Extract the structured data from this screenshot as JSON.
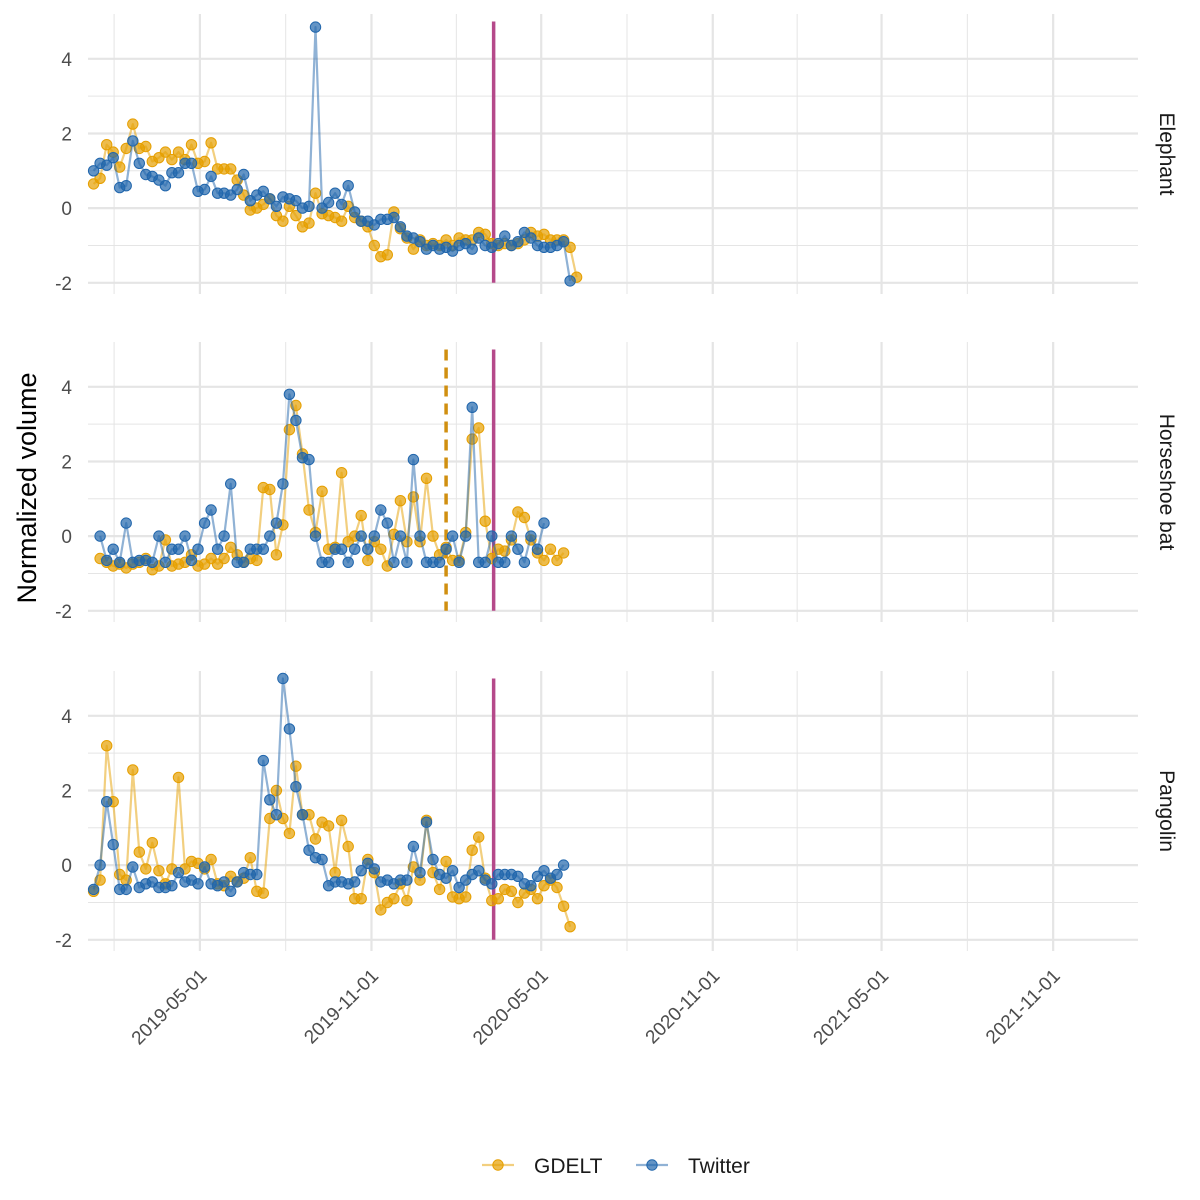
{
  "chart_data": {
    "type": "line",
    "ylabel": "Normalized volume",
    "xlabel": "",
    "colors": {
      "GDELT": "#E69F00",
      "Twitter": "#2166AC",
      "event_line": "#B5498A",
      "first_case_line": "#D08F10",
      "grid": "#E5E5E5"
    },
    "x_ticks": [
      "2019-05-01",
      "2019-11-01",
      "2020-05-01",
      "2020-11-01",
      "2021-05-01",
      "2021-11-01"
    ],
    "xlim": [
      "2019-01-01",
      "2022-01-31"
    ],
    "y_ticks": [
      -2,
      0,
      2,
      4
    ],
    "ylim": [
      -2.3,
      5.2
    ],
    "legend": {
      "position": "bottom",
      "entries": [
        "GDELT",
        "Twitter"
      ]
    },
    "panels": [
      {
        "label": "Elephant",
        "x_start": "2019-01-07",
        "step_days": 7,
        "vlines": [
          {
            "date": "2020-03-11",
            "style": "solid",
            "color_key": "event_line"
          }
        ],
        "series": [
          {
            "name": "GDELT",
            "values": [
              0.65,
              0.8,
              1.7,
              1.5,
              1.1,
              1.6,
              2.25,
              1.6,
              1.65,
              1.25,
              1.35,
              1.5,
              1.3,
              1.5,
              1.3,
              1.7,
              1.2,
              1.25,
              1.75,
              1.05,
              1.05,
              1.05,
              0.75,
              0.35,
              -0.05,
              0,
              0.1,
              0.25,
              -0.2,
              -0.35,
              0.05,
              -0.2,
              -0.5,
              -0.4,
              0.4,
              -0.15,
              -0.2,
              -0.25,
              -0.35,
              0.05,
              -0.25,
              -0.35,
              -0.5,
              -1.0,
              -1.3,
              -1.25,
              -0.1,
              -0.55,
              -0.8,
              -1.1,
              -0.85,
              -1.0,
              -0.95,
              -1.0,
              -0.85,
              -1.0,
              -0.8,
              -0.85,
              -0.85,
              -0.65,
              -0.7,
              -0.95,
              -1.0,
              -0.95,
              -1.0,
              -0.95,
              -0.85,
              -0.65,
              -0.75,
              -0.7,
              -0.85,
              -0.85,
              -0.85,
              -1.05,
              -1.85
            ]
          },
          {
            "name": "Twitter",
            "values": [
              1.0,
              1.2,
              1.15,
              1.35,
              0.55,
              0.6,
              1.8,
              1.2,
              0.9,
              0.85,
              0.75,
              0.6,
              0.95,
              0.95,
              1.2,
              1.2,
              0.45,
              0.5,
              0.85,
              0.4,
              0.4,
              0.35,
              0.5,
              0.9,
              0.2,
              0.35,
              0.45,
              0.25,
              0.05,
              0.3,
              0.25,
              0.2,
              0.0,
              0.05,
              4.85,
              0.0,
              0.15,
              0.4,
              0.1,
              0.6,
              -0.1,
              -0.35,
              -0.35,
              -0.45,
              -0.3,
              -0.3,
              -0.25,
              -0.5,
              -0.75,
              -0.8,
              -0.9,
              -1.1,
              -1.0,
              -1.1,
              -1.05,
              -1.15,
              -1.0,
              -0.95,
              -1.1,
              -0.8,
              -1.0,
              -1.05,
              -0.95,
              -0.75,
              -1.0,
              -0.9,
              -0.65,
              -0.8,
              -1.0,
              -1.05,
              -1.05,
              -1.0,
              -0.9,
              -1.95
            ]
          }
        ]
      },
      {
        "label": "Horseshoe bat",
        "x_start": "2019-01-07",
        "step_days": 7,
        "vlines": [
          {
            "date": "2020-01-20",
            "style": "dashed",
            "color_key": "first_case_line"
          },
          {
            "date": "2020-03-11",
            "style": "solid",
            "color_key": "event_line"
          }
        ],
        "series": [
          {
            "name": "GDELT",
            "values": [
              null,
              -0.6,
              -0.7,
              -0.8,
              -0.75,
              -0.85,
              -0.75,
              -0.7,
              -0.6,
              -0.9,
              -0.8,
              -0.1,
              -0.8,
              -0.75,
              -0.7,
              -0.5,
              -0.8,
              -0.75,
              -0.6,
              -0.75,
              -0.6,
              -0.3,
              -0.5,
              -0.7,
              -0.6,
              -0.65,
              1.3,
              1.25,
              -0.5,
              0.3,
              2.85,
              3.5,
              2.2,
              0.7,
              0.1,
              1.2,
              -0.35,
              -0.3,
              1.7,
              -0.15,
              0.0,
              0.55,
              -0.65,
              -0.15,
              -0.35,
              -0.8,
              0.05,
              0.95,
              -0.15,
              1.05,
              -0.15,
              1.55,
              0.0,
              -0.5,
              -0.3,
              -0.65,
              -0.65,
              0.1,
              2.6,
              2.9,
              0.4,
              -0.6,
              -0.35,
              -0.4,
              -0.1,
              0.65,
              0.5,
              -0.1,
              -0.45,
              -0.65,
              -0.35,
              -0.65,
              -0.45
            ]
          },
          {
            "name": "Twitter",
            "values": [
              null,
              0.0,
              -0.65,
              -0.35,
              -0.7,
              0.35,
              -0.7,
              -0.65,
              -0.65,
              -0.7,
              0.0,
              -0.7,
              -0.35,
              -0.35,
              0.0,
              -0.65,
              -0.35,
              0.35,
              0.7,
              -0.35,
              0.0,
              1.4,
              -0.7,
              -0.7,
              -0.35,
              -0.35,
              -0.35,
              0.0,
              0.35,
              1.4,
              3.8,
              3.1,
              2.1,
              2.05,
              0.0,
              -0.7,
              -0.7,
              -0.35,
              -0.35,
              -0.7,
              -0.35,
              0.0,
              -0.35,
              0.0,
              0.7,
              0.35,
              -0.7,
              0.0,
              -0.7,
              2.05,
              0.0,
              -0.7,
              -0.7,
              -0.7,
              -0.35,
              0.0,
              -0.7,
              0.0,
              3.45,
              -0.7,
              -0.7,
              0.0,
              -0.7,
              -0.7,
              0.0,
              -0.35,
              -0.7,
              0.0,
              -0.35,
              0.35
            ]
          }
        ]
      },
      {
        "label": "Pangolin",
        "x_start": "2019-01-07",
        "step_days": 7,
        "vlines": [
          {
            "date": "2020-03-11",
            "style": "solid",
            "color_key": "event_line"
          }
        ],
        "series": [
          {
            "name": "GDELT",
            "values": [
              -0.7,
              -0.4,
              3.2,
              1.7,
              -0.25,
              -0.4,
              2.55,
              0.35,
              -0.1,
              0.6,
              -0.15,
              -0.5,
              -0.1,
              2.35,
              -0.1,
              0.1,
              0.05,
              -0.1,
              0.15,
              -0.5,
              -0.55,
              -0.3,
              -0.45,
              -0.35,
              0.2,
              -0.7,
              -0.75,
              1.25,
              2.0,
              1.25,
              0.85,
              2.65,
              1.35,
              1.35,
              0.7,
              1.15,
              1.05,
              -0.2,
              1.2,
              0.5,
              -0.9,
              -0.9,
              0.15,
              -0.2,
              -1.2,
              -1.0,
              -0.9,
              -0.5,
              -0.95,
              -0.05,
              -0.4,
              1.2,
              -0.2,
              -0.65,
              0.1,
              -0.85,
              -0.9,
              -0.85,
              0.4,
              0.75,
              -0.35,
              -0.95,
              -0.9,
              -0.65,
              -0.7,
              -1.0,
              -0.75,
              -0.65,
              -0.9,
              -0.55,
              -0.4,
              -0.6,
              -1.1,
              -1.65
            ]
          },
          {
            "name": "Twitter",
            "values": [
              -0.65,
              0.0,
              1.7,
              0.55,
              -0.65,
              -0.65,
              -0.05,
              -0.6,
              -0.5,
              -0.45,
              -0.6,
              -0.6,
              -0.55,
              -0.2,
              -0.45,
              -0.4,
              -0.5,
              -0.05,
              -0.5,
              -0.55,
              -0.45,
              -0.7,
              -0.45,
              -0.2,
              -0.25,
              -0.25,
              2.8,
              1.75,
              1.35,
              5.0,
              3.65,
              2.1,
              1.35,
              0.4,
              0.2,
              0.15,
              -0.55,
              -0.45,
              -0.45,
              -0.5,
              -0.45,
              -0.15,
              0.05,
              -0.1,
              -0.45,
              -0.4,
              -0.5,
              -0.4,
              -0.4,
              0.5,
              -0.2,
              1.15,
              0.15,
              -0.25,
              -0.35,
              -0.15,
              -0.6,
              -0.4,
              -0.25,
              -0.15,
              -0.4,
              -0.5,
              -0.25,
              -0.25,
              -0.25,
              -0.3,
              -0.5,
              -0.55,
              -0.3,
              -0.15,
              -0.35,
              -0.25,
              0.0
            ]
          }
        ]
      }
    ]
  }
}
